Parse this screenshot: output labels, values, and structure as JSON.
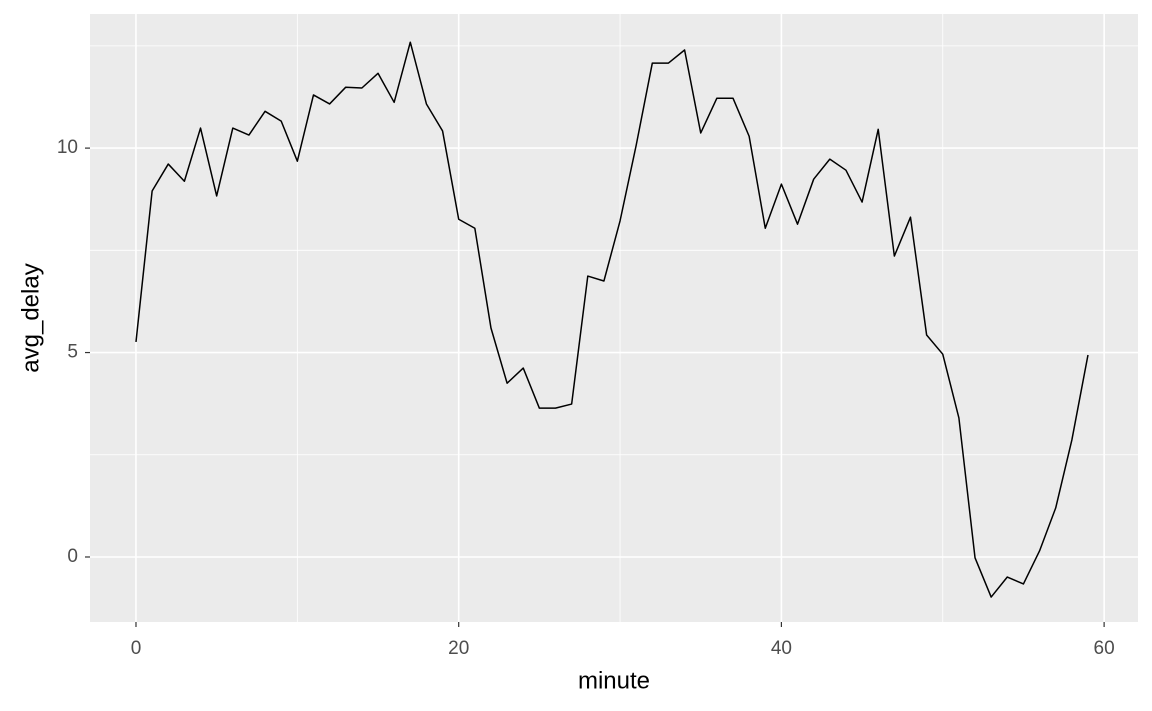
{
  "chart_data": {
    "type": "line",
    "x_label": "minute",
    "y_label": "avg_delay",
    "x": [
      0,
      1,
      2,
      3,
      4,
      5,
      6,
      7,
      8,
      9,
      10,
      11,
      12,
      13,
      14,
      15,
      16,
      17,
      18,
      19,
      20,
      21,
      22,
      23,
      24,
      25,
      26,
      27,
      28,
      29,
      30,
      31,
      32,
      33,
      34,
      35,
      36,
      37,
      38,
      39,
      40,
      41,
      42,
      43,
      44,
      45,
      46,
      47,
      48,
      49,
      50,
      51,
      52,
      53,
      54,
      55,
      56,
      57,
      58,
      59
    ],
    "values": [
      5.26,
      8.95,
      9.61,
      9.19,
      10.49,
      8.83,
      10.49,
      10.32,
      10.9,
      10.66,
      9.68,
      11.3,
      11.08,
      11.49,
      11.47,
      11.83,
      11.12,
      12.59,
      11.08,
      10.42,
      8.26,
      8.04,
      5.6,
      4.25,
      4.62,
      3.64,
      3.64,
      3.74,
      6.87,
      6.75,
      8.22,
      10.07,
      12.08,
      12.08,
      12.4,
      10.37,
      11.22,
      11.22,
      10.29,
      8.04,
      9.12,
      8.14,
      9.24,
      9.73,
      9.46,
      8.68,
      10.46,
      7.36,
      8.31,
      5.43,
      4.96,
      3.4,
      -0.02,
      -0.98,
      -0.49,
      -0.66,
      0.15,
      1.2,
      2.86,
      4.94
    ],
    "color": "#000000",
    "xlim": [
      -2.85,
      62.1
    ],
    "ylim": [
      -1.59,
      13.28
    ],
    "xticks": [
      0,
      20,
      40,
      60
    ],
    "yticks": [
      0,
      5,
      10
    ],
    "grid": true
  }
}
